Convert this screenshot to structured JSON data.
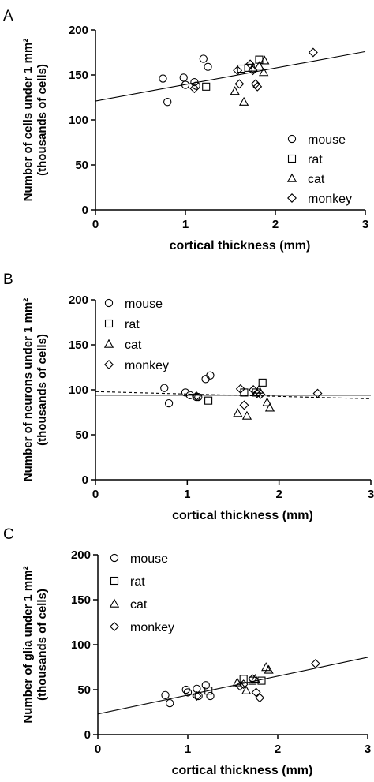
{
  "chart_data": [
    {
      "type": "scatter",
      "panel_label": "A",
      "xlabel": "cortical thickness (mm)",
      "ylabel_line1": "Number of cells under 1 mm²",
      "ylabel_line2": "(thousands of cells)",
      "xlim": [
        0,
        3
      ],
      "ylim": [
        0,
        200
      ],
      "xticks": [
        "0",
        "1",
        "2",
        "3"
      ],
      "yticks": [
        "0",
        "50",
        "100",
        "150",
        "200"
      ],
      "legend_position": "right",
      "legend": [
        "mouse",
        "rat",
        "cat",
        "monkey"
      ],
      "fits": [
        {
          "style": "solid",
          "x": [
            0,
            3
          ],
          "y": [
            121,
            176
          ]
        }
      ],
      "series": [
        {
          "name": "mouse",
          "marker": "circle",
          "points": [
            [
              0.75,
              146
            ],
            [
              0.8,
              120
            ],
            [
              0.98,
              147
            ],
            [
              1.0,
              139
            ],
            [
              1.1,
              142
            ],
            [
              1.12,
              138
            ],
            [
              1.2,
              168
            ],
            [
              1.25,
              159
            ]
          ]
        },
        {
          "name": "rat",
          "marker": "square",
          "points": [
            [
              1.23,
              137
            ],
            [
              1.62,
              157
            ],
            [
              1.7,
              158
            ],
            [
              1.82,
              167
            ]
          ]
        },
        {
          "name": "cat",
          "marker": "triangle",
          "points": [
            [
              1.55,
              132
            ],
            [
              1.65,
              120
            ],
            [
              1.75,
              158
            ],
            [
              1.82,
              160
            ],
            [
              1.87,
              153
            ],
            [
              1.88,
              166
            ]
          ]
        },
        {
          "name": "monkey",
          "marker": "diamond",
          "points": [
            [
              1.1,
              135
            ],
            [
              1.58,
              155
            ],
            [
              1.6,
              140
            ],
            [
              1.72,
              162
            ],
            [
              1.75,
              155
            ],
            [
              1.78,
              140
            ],
            [
              1.8,
              137
            ],
            [
              2.42,
              175
            ]
          ]
        }
      ]
    },
    {
      "type": "scatter",
      "panel_label": "B",
      "xlabel": "cortical thickness (mm)",
      "ylabel_line1": "Number of neurons under 1 mm²",
      "ylabel_line2": "(thousands of cells)",
      "xlim": [
        0,
        3
      ],
      "ylim": [
        0,
        200
      ],
      "xticks": [
        "0",
        "1",
        "2",
        "3"
      ],
      "yticks": [
        "0",
        "50",
        "100",
        "150",
        "200"
      ],
      "legend_position": "top-left",
      "legend": [
        "mouse",
        "rat",
        "cat",
        "monkey"
      ],
      "fits": [
        {
          "style": "solid",
          "x": [
            0,
            3
          ],
          "y": [
            94,
            94
          ]
        },
        {
          "style": "dashed",
          "x": [
            0,
            3
          ],
          "y": [
            98,
            90
          ]
        }
      ],
      "series": [
        {
          "name": "mouse",
          "marker": "circle",
          "points": [
            [
              0.75,
              102
            ],
            [
              0.8,
              85
            ],
            [
              0.98,
              97
            ],
            [
              1.03,
              94
            ],
            [
              1.1,
              92
            ],
            [
              1.12,
              92
            ],
            [
              1.2,
              112
            ],
            [
              1.25,
              116
            ]
          ]
        },
        {
          "name": "rat",
          "marker": "square",
          "points": [
            [
              1.23,
              88
            ],
            [
              1.62,
              97
            ],
            [
              1.75,
              97
            ],
            [
              1.82,
              108
            ]
          ]
        },
        {
          "name": "cat",
          "marker": "triangle",
          "points": [
            [
              1.55,
              74
            ],
            [
              1.65,
              71
            ],
            [
              1.78,
              100
            ],
            [
              1.87,
              86
            ],
            [
              1.9,
              80
            ]
          ]
        },
        {
          "name": "monkey",
          "marker": "diamond",
          "points": [
            [
              1.1,
              93
            ],
            [
              1.58,
              101
            ],
            [
              1.62,
              83
            ],
            [
              1.72,
              100
            ],
            [
              1.76,
              96
            ],
            [
              1.8,
              95
            ],
            [
              2.42,
              96
            ]
          ]
        }
      ]
    },
    {
      "type": "scatter",
      "panel_label": "C",
      "xlabel": "cortical thickness (mm)",
      "ylabel_line1": "Number of glia under 1 mm²",
      "ylabel_line2": "(thousands of cells)",
      "xlim": [
        0,
        3
      ],
      "ylim": [
        0,
        200
      ],
      "xticks": [
        "0",
        "1",
        "2",
        "3"
      ],
      "yticks": [
        "0",
        "50",
        "100",
        "150",
        "200"
      ],
      "legend_position": "top-left",
      "legend": [
        "mouse",
        "rat",
        "cat",
        "monkey"
      ],
      "fits": [
        {
          "style": "solid",
          "x": [
            0,
            3
          ],
          "y": [
            23,
            86
          ]
        }
      ],
      "series": [
        {
          "name": "mouse",
          "marker": "circle",
          "points": [
            [
              0.75,
              44
            ],
            [
              0.8,
              35
            ],
            [
              0.98,
              50
            ],
            [
              1.0,
              47
            ],
            [
              1.1,
              51
            ],
            [
              1.12,
              43
            ],
            [
              1.2,
              55
            ],
            [
              1.25,
              43
            ]
          ]
        },
        {
          "name": "rat",
          "marker": "square",
          "points": [
            [
              1.23,
              49
            ],
            [
              1.62,
              62
            ],
            [
              1.72,
              60
            ],
            [
              1.82,
              60
            ]
          ]
        },
        {
          "name": "cat",
          "marker": "triangle",
          "points": [
            [
              1.55,
              58
            ],
            [
              1.65,
              49
            ],
            [
              1.75,
              62
            ],
            [
              1.87,
              75
            ],
            [
              1.9,
              72
            ]
          ]
        },
        {
          "name": "monkey",
          "marker": "diamond",
          "points": [
            [
              1.1,
              43
            ],
            [
              1.58,
              54
            ],
            [
              1.62,
              56
            ],
            [
              1.72,
              62
            ],
            [
              1.76,
              47
            ],
            [
              1.8,
              41
            ],
            [
              2.42,
              79
            ]
          ]
        }
      ]
    }
  ]
}
